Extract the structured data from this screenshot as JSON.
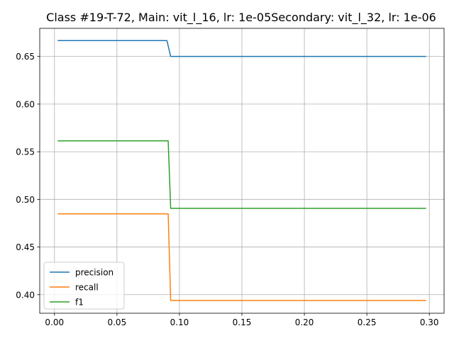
{
  "chart_data": {
    "type": "line",
    "title": "Class #19-T-72, Main: vit_l_16, lr: 1e-05Secondary: vit_l_32, lr: 1e-06",
    "xlabel": "",
    "ylabel": "",
    "xlim": [
      -0.0118,
      0.3118
    ],
    "ylim": [
      0.3805,
      0.6795
    ],
    "grid": true,
    "legend_position": "lower-left",
    "x_ticks": [
      0.0,
      0.05,
      0.1,
      0.15,
      0.2,
      0.25,
      0.3
    ],
    "x_tick_labels": [
      "0.00",
      "0.05",
      "0.10",
      "0.15",
      "0.20",
      "0.25",
      "0.30"
    ],
    "y_ticks": [
      0.4,
      0.45,
      0.5,
      0.55,
      0.6,
      0.65
    ],
    "y_tick_labels": [
      "0.40",
      "0.45",
      "0.50",
      "0.55",
      "0.60",
      "0.65"
    ],
    "series": [
      {
        "name": "precision",
        "color": "#1f77b4",
        "x": [
          0.003,
          0.09,
          0.093,
          0.297
        ],
        "y": [
          0.6667,
          0.6667,
          0.65,
          0.65
        ]
      },
      {
        "name": "recall",
        "color": "#ff7f0e",
        "x": [
          0.003,
          0.091,
          0.093,
          0.297
        ],
        "y": [
          0.4848,
          0.4848,
          0.3939,
          0.3939
        ]
      },
      {
        "name": "f1",
        "color": "#2ca02c",
        "x": [
          0.003,
          0.091,
          0.093,
          0.297
        ],
        "y": [
          0.5614,
          0.5614,
          0.4906,
          0.4906
        ]
      }
    ]
  }
}
